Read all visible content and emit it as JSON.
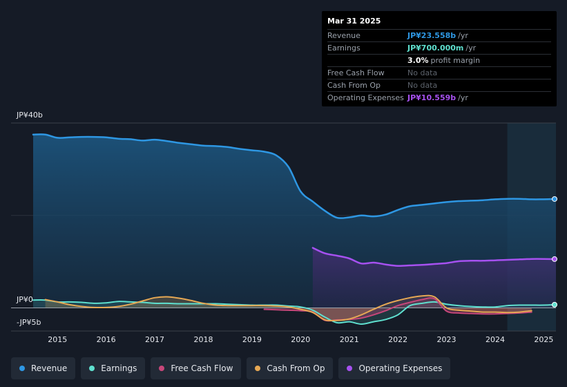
{
  "tooltip": {
    "date": "Mar 31 2025",
    "rows": [
      {
        "label": "Revenue",
        "value": "JP¥23.558b",
        "unit": "/yr",
        "color": "#2e97e3"
      },
      {
        "label": "Earnings",
        "value": "JP¥700.000m",
        "unit": "/yr",
        "color": "#5fe0cf"
      },
      {
        "label": "",
        "value": "3.0%",
        "unit": "profit margin",
        "color": "#ffffff"
      },
      {
        "label": "Free Cash Flow",
        "value": "No data",
        "unit": "",
        "color": ""
      },
      {
        "label": "Cash From Op",
        "value": "No data",
        "unit": "",
        "color": ""
      },
      {
        "label": "Operating Expenses",
        "value": "JP¥10.559b",
        "unit": "/yr",
        "color": "#a651f0"
      }
    ]
  },
  "legend": [
    {
      "label": "Revenue",
      "color": "#2e97e3"
    },
    {
      "label": "Earnings",
      "color": "#5fe0cf"
    },
    {
      "label": "Free Cash Flow",
      "color": "#c7477a"
    },
    {
      "label": "Cash From Op",
      "color": "#e6a854"
    },
    {
      "label": "Operating Expenses",
      "color": "#a651f0"
    }
  ],
  "chart_data": {
    "type": "area",
    "title": "",
    "xlabel": "",
    "ylabel": "",
    "y_top_label": "JP¥40b",
    "y_zero_label": "JP¥0",
    "y_bottom_label": "-JP¥5b",
    "ylim": [
      -5,
      40
    ],
    "xlim": [
      2014.5,
      2025.25
    ],
    "x_ticks": [
      "2015",
      "2016",
      "2017",
      "2018",
      "2019",
      "2020",
      "2021",
      "2022",
      "2023",
      "2024",
      "2025"
    ],
    "x_tick_values": [
      2015,
      2016,
      2017,
      2018,
      2019,
      2020,
      2021,
      2022,
      2023,
      2024,
      2025
    ],
    "series": [
      {
        "name": "Revenue",
        "color": "#2e97e3",
        "x": [
          2014.5,
          2014.75,
          2015.0,
          2015.25,
          2015.5,
          2015.75,
          2016.0,
          2016.25,
          2016.5,
          2016.75,
          2017.0,
          2017.25,
          2017.5,
          2017.75,
          2018.0,
          2018.25,
          2018.5,
          2018.75,
          2019.0,
          2019.25,
          2019.5,
          2019.75,
          2020.0,
          2020.25,
          2020.5,
          2020.75,
          2021.0,
          2021.25,
          2021.5,
          2021.75,
          2022.0,
          2022.25,
          2022.5,
          2022.75,
          2023.0,
          2023.25,
          2023.5,
          2023.75,
          2024.0,
          2024.25,
          2024.5,
          2024.75,
          2025.0,
          2025.25
        ],
        "values": [
          37.5,
          37.5,
          36.8,
          36.9,
          37.0,
          37.0,
          36.9,
          36.6,
          36.5,
          36.2,
          36.4,
          36.1,
          35.7,
          35.4,
          35.1,
          35.0,
          34.8,
          34.4,
          34.1,
          33.8,
          33.0,
          30.5,
          25.2,
          23.0,
          21.0,
          19.5,
          19.6,
          20.0,
          19.8,
          20.2,
          21.2,
          22.0,
          22.3,
          22.6,
          22.9,
          23.1,
          23.2,
          23.3,
          23.5,
          23.6,
          23.6,
          23.5,
          23.5,
          23.558
        ]
      },
      {
        "name": "Earnings",
        "color": "#5fe0cf",
        "x": [
          2014.5,
          2014.75,
          2015.0,
          2015.25,
          2015.5,
          2015.75,
          2016.0,
          2016.25,
          2016.5,
          2016.75,
          2017.0,
          2017.25,
          2017.5,
          2017.75,
          2018.0,
          2018.25,
          2018.5,
          2018.75,
          2019.0,
          2019.25,
          2019.5,
          2019.75,
          2020.0,
          2020.25,
          2020.5,
          2020.75,
          2021.0,
          2021.25,
          2021.5,
          2021.75,
          2022.0,
          2022.25,
          2022.5,
          2022.75,
          2023.0,
          2023.25,
          2023.5,
          2023.75,
          2024.0,
          2024.25,
          2024.5,
          2024.75,
          2025.0,
          2025.25
        ],
        "values": [
          1.7,
          1.7,
          1.3,
          1.3,
          1.2,
          1.0,
          1.1,
          1.4,
          1.3,
          1.2,
          1.0,
          1.0,
          0.9,
          0.9,
          0.9,
          0.9,
          0.8,
          0.7,
          0.6,
          0.6,
          0.6,
          0.4,
          0.2,
          -0.5,
          -2.0,
          -3.2,
          -3.0,
          -3.5,
          -3.0,
          -2.5,
          -1.5,
          0.5,
          1.0,
          1.3,
          0.8,
          0.5,
          0.3,
          0.2,
          0.2,
          0.5,
          0.6,
          0.6,
          0.6,
          0.7
        ]
      },
      {
        "name": "Free Cash Flow",
        "color": "#c7477a",
        "x": [
          2019.25,
          2019.5,
          2019.75,
          2020.0,
          2020.25,
          2020.5,
          2020.75,
          2021.0,
          2021.25,
          2021.5,
          2021.75,
          2022.0,
          2022.25,
          2022.5,
          2022.75,
          2023.0,
          2023.25,
          2023.5,
          2023.75,
          2024.0,
          2024.25,
          2024.5,
          2024.75
        ],
        "values": [
          -0.3,
          -0.4,
          -0.5,
          -0.6,
          -0.9,
          -2.7,
          -2.6,
          -2.5,
          -2.2,
          -1.5,
          -0.6,
          0.5,
          1.2,
          1.8,
          2.0,
          -0.7,
          -1.1,
          -1.2,
          -1.3,
          -1.3,
          -1.2,
          -1.1,
          -0.9
        ]
      },
      {
        "name": "Cash From Op",
        "color": "#e6a854",
        "x": [
          2014.75,
          2015.0,
          2015.25,
          2015.5,
          2015.75,
          2016.0,
          2016.25,
          2016.5,
          2016.75,
          2017.0,
          2017.25,
          2017.5,
          2017.75,
          2018.0,
          2018.25,
          2018.5,
          2018.75,
          2019.0,
          2019.25,
          2019.5,
          2019.75,
          2020.0,
          2020.25,
          2020.5,
          2020.75,
          2021.0,
          2021.25,
          2021.5,
          2021.75,
          2022.0,
          2022.25,
          2022.5,
          2022.75,
          2023.0,
          2023.25,
          2023.5,
          2023.75,
          2024.0,
          2024.25,
          2024.5,
          2024.75
        ],
        "values": [
          1.8,
          1.3,
          0.7,
          0.3,
          0.1,
          0.1,
          0.3,
          0.8,
          1.5,
          2.2,
          2.4,
          2.1,
          1.6,
          1.0,
          0.6,
          0.5,
          0.5,
          0.5,
          0.5,
          0.4,
          0.2,
          -0.3,
          -1.0,
          -2.6,
          -2.7,
          -2.4,
          -1.5,
          -0.3,
          0.8,
          1.6,
          2.2,
          2.6,
          2.4,
          0.0,
          -0.5,
          -0.7,
          -0.9,
          -0.9,
          -1.0,
          -0.9,
          -0.6
        ]
      },
      {
        "name": "Operating Expenses",
        "color": "#a651f0",
        "x": [
          2020.25,
          2020.5,
          2020.75,
          2021.0,
          2021.25,
          2021.5,
          2021.75,
          2022.0,
          2022.25,
          2022.5,
          2022.75,
          2023.0,
          2023.25,
          2023.5,
          2023.75,
          2024.0,
          2024.25,
          2024.5,
          2024.75,
          2025.0,
          2025.25
        ],
        "values": [
          13.0,
          11.8,
          11.3,
          10.7,
          9.6,
          9.8,
          9.4,
          9.1,
          9.2,
          9.3,
          9.5,
          9.7,
          10.1,
          10.2,
          10.2,
          10.3,
          10.4,
          10.5,
          10.6,
          10.6,
          10.559
        ]
      }
    ],
    "highlight_start": 2024.25
  }
}
